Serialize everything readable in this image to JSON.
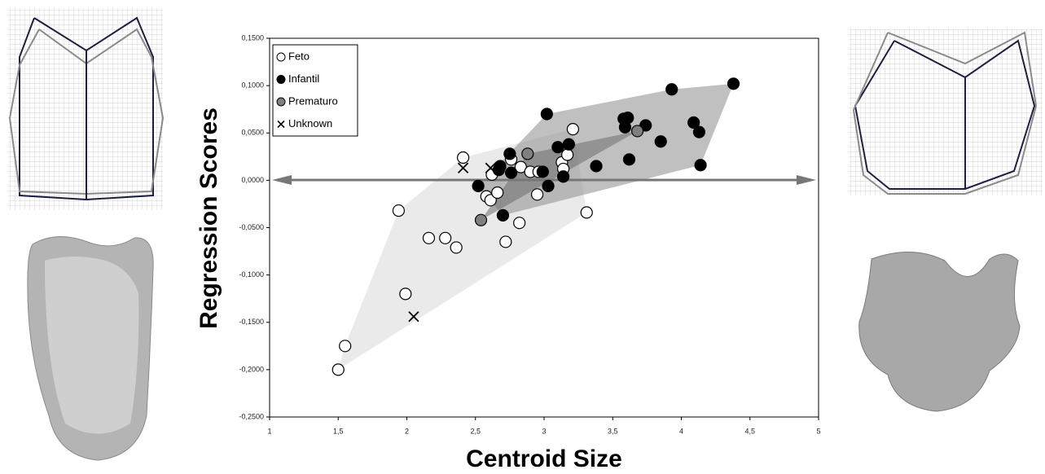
{
  "chart_data": {
    "type": "scatter",
    "x_label": "Centroid Size",
    "y_label": "Regression Scores",
    "xlim": [
      1,
      5
    ],
    "ylim": [
      -0.25,
      0.15
    ],
    "xticks": [
      1,
      {
        "value": 1.5,
        "label": "1,5"
      },
      2,
      {
        "value": 2.5,
        "label": "2,5"
      },
      3,
      {
        "value": 3.5,
        "label": "3,5"
      },
      4,
      {
        "value": 4.5,
        "label": "4,5"
      },
      5
    ],
    "yticks": [
      {
        "value": -0.25,
        "label": "-0,2500"
      },
      {
        "value": -0.2,
        "label": "-0,2000"
      },
      {
        "value": -0.15,
        "label": "-0,1500"
      },
      {
        "value": -0.1,
        "label": "-0,1000"
      },
      {
        "value": -0.05,
        "label": "-0,0500"
      },
      {
        "value": 0,
        "label": "0,0000"
      },
      {
        "value": 0.05,
        "label": "0,0500"
      },
      {
        "value": 0.1,
        "label": "0,1000"
      },
      {
        "value": 0.15,
        "label": "0,1500"
      }
    ],
    "legend": "upper left",
    "series": [
      {
        "name": "Feto",
        "color": "#ffffff",
        "marker": "circle",
        "hull_color": "#d9d9d9",
        "x": [
          1.5,
          1.55,
          1.94,
          1.99,
          2.16,
          2.28,
          2.36,
          2.41,
          2.58,
          2.61,
          2.62,
          2.66,
          2.72,
          2.76,
          2.82,
          2.83,
          2.9,
          2.95,
          2.96,
          3.13,
          3.14,
          3.17,
          3.21,
          3.31
        ],
        "values": [
          -0.2,
          -0.175,
          -0.032,
          -0.12,
          -0.061,
          -0.061,
          -0.071,
          0.024,
          -0.017,
          -0.021,
          0.006,
          -0.013,
          -0.065,
          0.022,
          -0.045,
          0.014,
          0.009,
          -0.015,
          0.009,
          0.019,
          0.012,
          0.027,
          0.054,
          -0.034
        ]
      },
      {
        "name": "Infantil",
        "color": "#000000",
        "marker": "circle",
        "hull_color": "#8c8c8c",
        "x": [
          2.52,
          2.67,
          2.7,
          2.68,
          2.75,
          2.76,
          2.99,
          3.02,
          3.03,
          3.1,
          3.14,
          3.18,
          3.38,
          3.58,
          3.59,
          3.61,
          3.62,
          3.74,
          3.85,
          3.93,
          4.09,
          4.13,
          4.14,
          4.38
        ],
        "values": [
          -0.006,
          0.011,
          -0.037,
          0.015,
          0.028,
          0.008,
          0.009,
          0.07,
          -0.006,
          0.035,
          0.004,
          0.038,
          0.015,
          0.065,
          0.056,
          0.066,
          0.022,
          0.058,
          0.041,
          0.096,
          0.061,
          0.051,
          0.016,
          0.102
        ]
      },
      {
        "name": "Prematuro",
        "color": "#808080",
        "marker": "circle",
        "hull_color": "#6e6e6e",
        "x": [
          2.54,
          2.88,
          3.68
        ],
        "values": [
          -0.042,
          0.028,
          0.052
        ]
      },
      {
        "name": "Unknown",
        "color": "#000000",
        "marker": "cross",
        "x": [
          2.41,
          2.61,
          2.05
        ],
        "values": [
          0.013,
          0.013,
          -0.144
        ]
      }
    ]
  }
}
